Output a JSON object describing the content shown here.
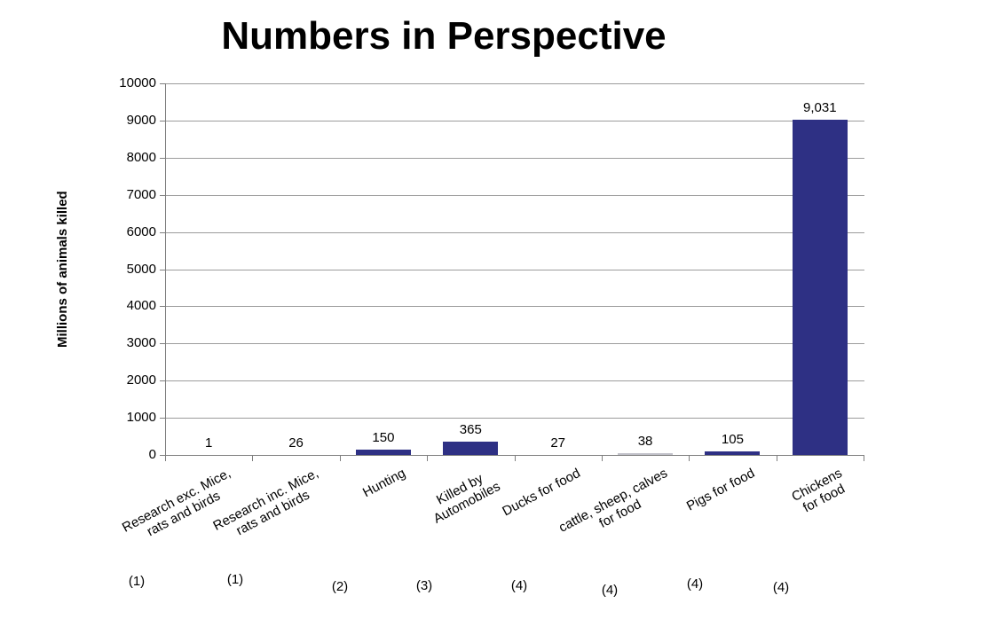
{
  "chart_data": {
    "type": "bar",
    "title": "Numbers in Perspective",
    "xlabel": "",
    "ylabel": "Millions of animals killed",
    "ylim": [
      0,
      10000
    ],
    "ytick_step": 1000,
    "grid": true,
    "legend": "none",
    "categories": [
      "Research exc. Mice, rats and birds",
      "Research inc. Mice, rats and birds",
      "Hunting",
      "Killed by Automobiles",
      "Ducks for food",
      "cattle, sheep, calves for food",
      "Pigs for food",
      "Chickens for food"
    ],
    "category_label_lines": [
      [
        "Research exc. Mice,",
        "rats and birds"
      ],
      [
        "Research inc. Mice,",
        "rats and birds"
      ],
      [
        "Hunting"
      ],
      [
        "Killed by",
        "Automobiles"
      ],
      [
        "Ducks for food"
      ],
      [
        "cattle, sheep, calves",
        "for food"
      ],
      [
        "Pigs for food"
      ],
      [
        "Chickens",
        "for food"
      ]
    ],
    "values": [
      1,
      26,
      150,
      365,
      27,
      38,
      105,
      9031
    ],
    "data_labels": [
      "1",
      "26",
      "150",
      "365",
      "27",
      "38",
      "105",
      "9,031"
    ],
    "footnotes": [
      "(1)",
      "(1)",
      "(2)",
      "(3)",
      "(4)",
      "(4)",
      "(4)",
      "(4)"
    ],
    "bar_color": "#2E3084",
    "bar_color_overrides": {
      "5": "#C0C0C8"
    },
    "gridline_color": "#9C9C9C",
    "axis_color": "#7F7F7F",
    "text_color": "#000000"
  }
}
